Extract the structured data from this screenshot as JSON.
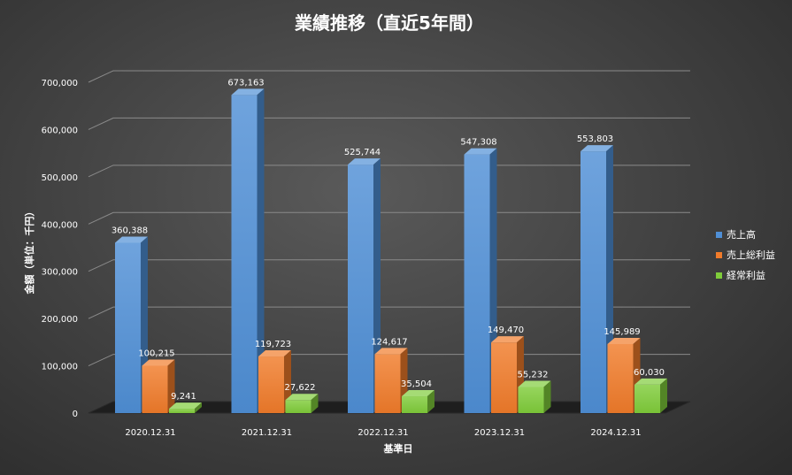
{
  "chart_data": {
    "type": "bar",
    "title": "業績推移（直近5年間）",
    "xlabel": "基準日",
    "ylabel": "金額（単位：千円）",
    "categories": [
      "2020.12.31",
      "2021.12.31",
      "2022.12.31",
      "2023.12.31",
      "2024.12.31"
    ],
    "series": [
      {
        "name": "売上高",
        "values": [
          360388,
          673163,
          525744,
          547308,
          553803
        ],
        "labels": [
          "360,388",
          "673,163",
          "525,744",
          "547,308",
          "553,803"
        ]
      },
      {
        "name": "売上総利益",
        "values": [
          100215,
          119723,
          124617,
          149470,
          145989
        ],
        "labels": [
          "100,215",
          "119,723",
          "124,617",
          "149,470",
          "145,989"
        ]
      },
      {
        "name": "経常利益",
        "values": [
          9241,
          27622,
          35504,
          55232,
          60030
        ],
        "labels": [
          "9,241",
          "27,622",
          "35,504",
          "55,232",
          "60,030"
        ]
      }
    ],
    "yticks": [
      "0",
      "100,000",
      "200,000",
      "300,000",
      "400,000",
      "500,000",
      "600,000",
      "700,000"
    ],
    "ylim": [
      0,
      700000
    ],
    "grid": true,
    "legend_position": "right",
    "colors": {
      "売上高": "#4f8fd6",
      "売上総利益": "#f07b2a",
      "経常利益": "#7fcc3a"
    }
  }
}
